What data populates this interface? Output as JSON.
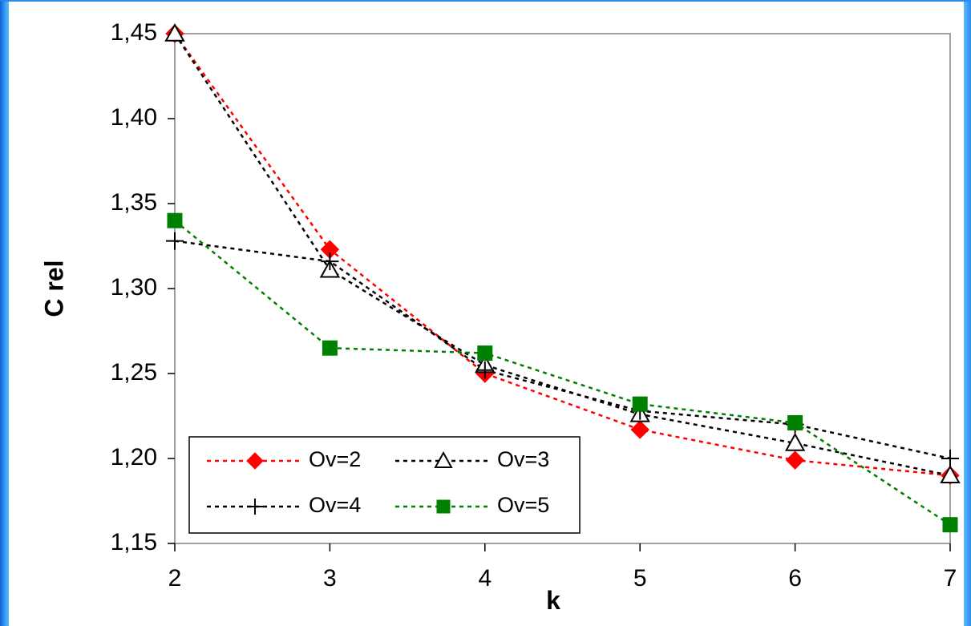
{
  "chart_data": {
    "type": "line",
    "title": "",
    "xlabel": "k",
    "ylabel": "C rel",
    "x": [
      2,
      3,
      4,
      5,
      6,
      7
    ],
    "x_tick_labels": [
      "2",
      "3",
      "4",
      "5",
      "6",
      "7"
    ],
    "ylim": [
      1.15,
      1.45
    ],
    "y_ticks": [
      1.15,
      1.2,
      1.25,
      1.3,
      1.35,
      1.4,
      1.45
    ],
    "y_tick_labels": [
      "1,15",
      "1,20",
      "1,25",
      "1,30",
      "1,35",
      "1,40",
      "1,45"
    ],
    "grid": false,
    "legend_position": "bottom-left",
    "series": [
      {
        "name": "Ov=2",
        "values": [
          1.45,
          1.323,
          1.25,
          1.217,
          1.199,
          1.19
        ],
        "color": "#ff0000",
        "marker": "diamond"
      },
      {
        "name": "Ov=3",
        "values": [
          1.45,
          1.311,
          1.255,
          1.226,
          1.209,
          1.19
        ],
        "color": "#000000",
        "marker": "triangle"
      },
      {
        "name": "Ov=4",
        "values": [
          1.328,
          1.316,
          1.252,
          1.228,
          1.22,
          1.2
        ],
        "color": "#000000",
        "marker": "plus"
      },
      {
        "name": "Ov=5",
        "values": [
          1.34,
          1.265,
          1.262,
          1.232,
          1.221,
          1.161
        ],
        "color": "#008000",
        "marker": "square"
      }
    ]
  }
}
